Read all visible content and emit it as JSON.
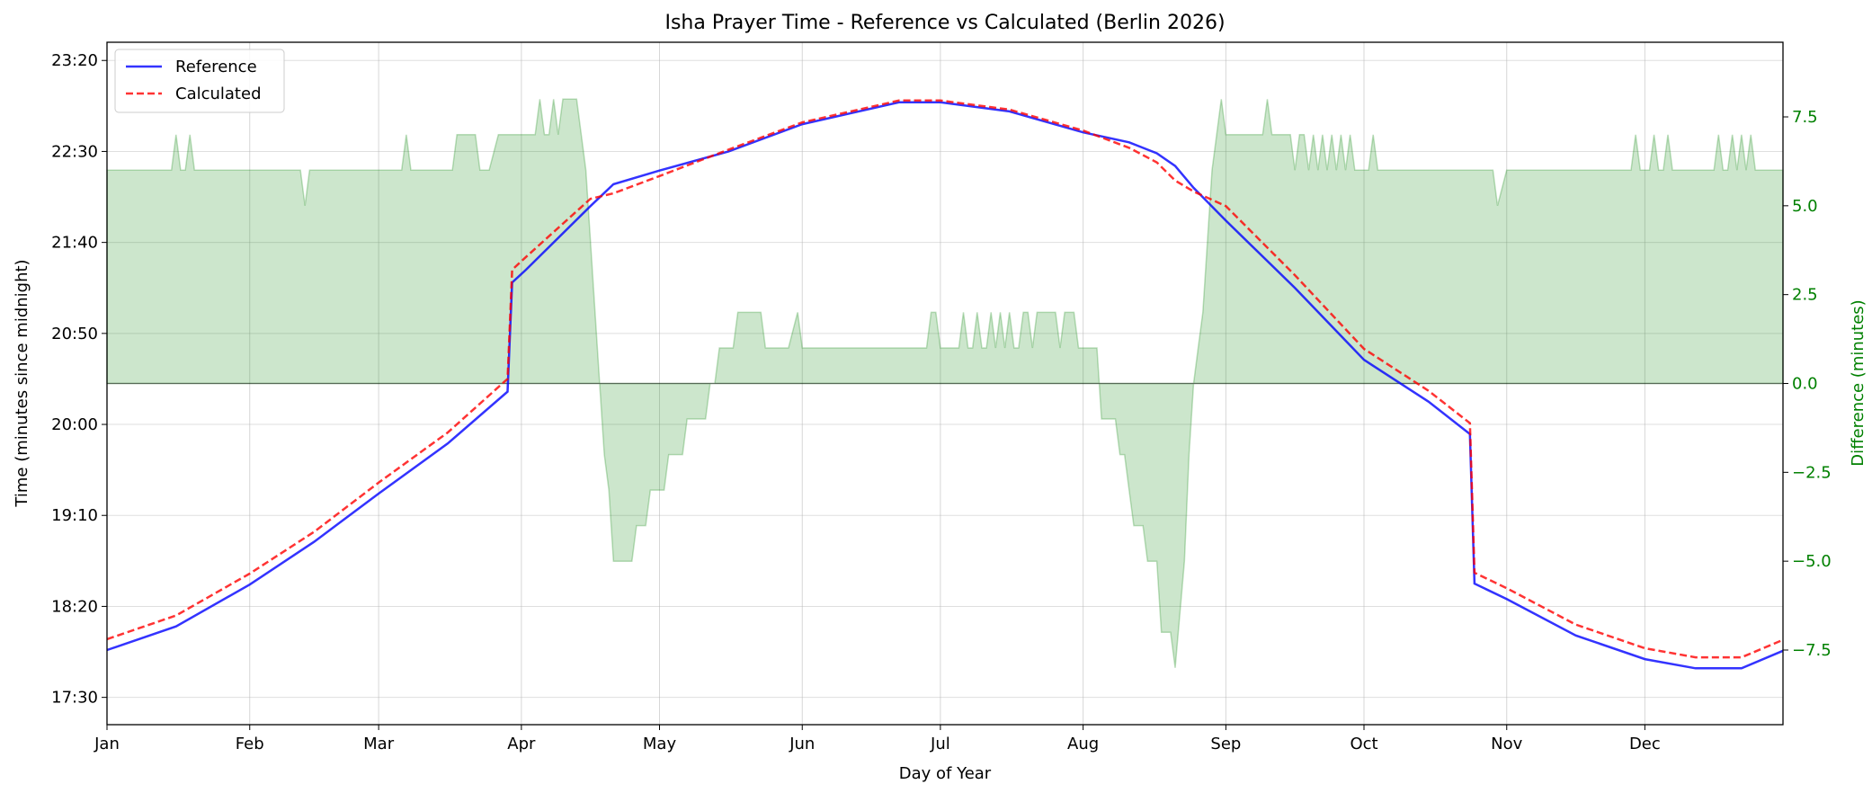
{
  "chart_data": {
    "type": "line",
    "title": "Isha Prayer Time - Reference vs Calculated (Berlin 2026)",
    "xlabel": "Day of Year",
    "ylabel": "Time (minutes since midnight)",
    "ylabel_right": "Difference (minutes)",
    "xlim": [
      0,
      364
    ],
    "ylim": [
      1035,
      1410
    ],
    "ylim_right": [
      -9.6,
      9.6
    ],
    "grid": true,
    "legend_placement": "top-left",
    "x_ticks": [
      {
        "day": 0,
        "label": "Jan"
      },
      {
        "day": 31,
        "label": "Feb"
      },
      {
        "day": 59,
        "label": "Mar"
      },
      {
        "day": 90,
        "label": "Apr"
      },
      {
        "day": 120,
        "label": "May"
      },
      {
        "day": 151,
        "label": "Jun"
      },
      {
        "day": 181,
        "label": "Jul"
      },
      {
        "day": 212,
        "label": "Aug"
      },
      {
        "day": 243,
        "label": "Sep"
      },
      {
        "day": 273,
        "label": "Oct"
      },
      {
        "day": 304,
        "label": "Nov"
      },
      {
        "day": 334,
        "label": "Dec"
      }
    ],
    "y_ticks": [
      {
        "value": 1050,
        "label": "17:30"
      },
      {
        "value": 1100,
        "label": "18:20"
      },
      {
        "value": 1150,
        "label": "19:10"
      },
      {
        "value": 1200,
        "label": "20:00"
      },
      {
        "value": 1250,
        "label": "20:50"
      },
      {
        "value": 1300,
        "label": "21:40"
      },
      {
        "value": 1350,
        "label": "22:30"
      },
      {
        "value": 1400,
        "label": "23:20"
      }
    ],
    "y_ticks_right": [
      {
        "value": -7.5,
        "label": "−7.5"
      },
      {
        "value": -5,
        "label": "−5.0"
      },
      {
        "value": -2.5,
        "label": "−2.5"
      },
      {
        "value": 0,
        "label": "0.0"
      },
      {
        "value": 2.5,
        "label": "2.5"
      },
      {
        "value": 5,
        "label": "5.0"
      },
      {
        "value": 7.5,
        "label": "7.5"
      }
    ],
    "series": [
      {
        "name": "Reference",
        "color": "#0000ff",
        "style": "solid",
        "points": [
          [
            0,
            1076
          ],
          [
            15,
            1089
          ],
          [
            31,
            1112
          ],
          [
            45,
            1135.5
          ],
          [
            59,
            1162
          ],
          [
            74,
            1189.5
          ],
          [
            87,
            1218
          ],
          [
            88,
            1278
          ],
          [
            91,
            1285
          ],
          [
            105,
            1320
          ],
          [
            110,
            1332
          ],
          [
            120,
            1339.5
          ],
          [
            135,
            1350
          ],
          [
            151,
            1365
          ],
          [
            172,
            1377
          ],
          [
            181,
            1377
          ],
          [
            196,
            1372
          ],
          [
            212,
            1360.5
          ],
          [
            222,
            1355
          ],
          [
            228,
            1349
          ],
          [
            232,
            1342
          ],
          [
            236,
            1330
          ],
          [
            243,
            1312
          ],
          [
            258,
            1275
          ],
          [
            273,
            1235.5
          ],
          [
            287,
            1212.5
          ],
          [
            296,
            1194.7
          ],
          [
            297,
            1112.5
          ],
          [
            304,
            1104
          ],
          [
            319,
            1084
          ],
          [
            334,
            1071
          ],
          [
            345,
            1066
          ],
          [
            355,
            1066
          ],
          [
            364,
            1075.6
          ]
        ]
      },
      {
        "name": "Calculated",
        "color": "#ff0000",
        "style": "dashed",
        "points": [
          [
            0,
            1082
          ],
          [
            15,
            1095
          ],
          [
            31,
            1118
          ],
          [
            45,
            1141
          ],
          [
            59,
            1168
          ],
          [
            74,
            1195.5
          ],
          [
            87,
            1225
          ],
          [
            88,
            1285
          ],
          [
            91,
            1292
          ],
          [
            105,
            1324
          ],
          [
            110,
            1327
          ],
          [
            120,
            1336.5
          ],
          [
            135,
            1351
          ],
          [
            151,
            1366
          ],
          [
            172,
            1378
          ],
          [
            181,
            1378
          ],
          [
            196,
            1373
          ],
          [
            212,
            1361.5
          ],
          [
            222,
            1352
          ],
          [
            228,
            1344
          ],
          [
            232,
            1334
          ],
          [
            236,
            1328
          ],
          [
            243,
            1320
          ],
          [
            258,
            1282
          ],
          [
            273,
            1241.5
          ],
          [
            287,
            1218.5
          ],
          [
            296,
            1200.7
          ],
          [
            297,
            1118.5
          ],
          [
            304,
            1110
          ],
          [
            319,
            1090
          ],
          [
            334,
            1077
          ],
          [
            345,
            1072
          ],
          [
            355,
            1072
          ],
          [
            364,
            1081.6
          ]
        ]
      },
      {
        "axis": "right",
        "color": "#008000",
        "style": "fill",
        "points": [
          [
            0,
            6
          ],
          [
            14,
            6
          ],
          [
            15,
            7
          ],
          [
            16,
            6
          ],
          [
            17,
            6
          ],
          [
            18,
            7
          ],
          [
            19,
            6
          ],
          [
            42,
            6
          ],
          [
            43,
            5
          ],
          [
            44,
            6
          ],
          [
            64,
            6
          ],
          [
            65,
            7
          ],
          [
            66,
            6
          ],
          [
            75,
            6
          ],
          [
            76,
            7
          ],
          [
            80,
            7
          ],
          [
            81,
            6
          ],
          [
            83,
            6
          ],
          [
            85,
            7
          ],
          [
            93,
            7
          ],
          [
            94,
            8
          ],
          [
            95,
            7
          ],
          [
            96,
            7
          ],
          [
            97,
            8
          ],
          [
            98,
            7
          ],
          [
            99,
            8
          ],
          [
            102,
            8
          ],
          [
            104,
            6
          ],
          [
            106,
            2
          ],
          [
            107,
            0
          ],
          [
            108,
            -2
          ],
          [
            109,
            -3
          ],
          [
            110,
            -5
          ],
          [
            114,
            -5
          ],
          [
            115,
            -4
          ],
          [
            117,
            -4
          ],
          [
            118,
            -3
          ],
          [
            121,
            -3
          ],
          [
            122,
            -2
          ],
          [
            125,
            -2
          ],
          [
            126,
            -1
          ],
          [
            130,
            -1
          ],
          [
            131,
            0
          ],
          [
            132,
            0
          ],
          [
            133,
            1
          ],
          [
            136,
            1
          ],
          [
            137,
            2
          ],
          [
            142,
            2
          ],
          [
            143,
            1
          ],
          [
            148,
            1
          ],
          [
            150,
            2
          ],
          [
            151,
            1
          ],
          [
            178,
            1
          ],
          [
            179,
            2
          ],
          [
            180,
            2
          ],
          [
            181,
            1
          ],
          [
            185,
            1
          ],
          [
            186,
            2
          ],
          [
            187,
            1
          ],
          [
            188,
            1
          ],
          [
            189,
            2
          ],
          [
            190,
            1
          ],
          [
            191,
            1
          ],
          [
            192,
            2
          ],
          [
            193,
            1
          ],
          [
            194,
            2
          ],
          [
            195,
            1
          ],
          [
            196,
            2
          ],
          [
            197,
            1
          ],
          [
            198,
            1
          ],
          [
            199,
            2
          ],
          [
            200,
            2
          ],
          [
            201,
            1
          ],
          [
            202,
            2
          ],
          [
            206,
            2
          ],
          [
            207,
            1
          ],
          [
            208,
            2
          ],
          [
            210,
            2
          ],
          [
            211,
            1
          ],
          [
            215,
            1
          ],
          [
            216,
            -1
          ],
          [
            219,
            -1
          ],
          [
            220,
            -2
          ],
          [
            221,
            -2
          ],
          [
            222,
            -3
          ],
          [
            223,
            -4
          ],
          [
            225,
            -4
          ],
          [
            226,
            -5
          ],
          [
            228,
            -5
          ],
          [
            229,
            -7
          ],
          [
            231,
            -7
          ],
          [
            232,
            -8
          ],
          [
            234,
            -5
          ],
          [
            235,
            -2
          ],
          [
            236,
            0
          ],
          [
            237,
            1
          ],
          [
            238,
            2
          ],
          [
            239,
            4
          ],
          [
            240,
            6
          ],
          [
            242,
            8
          ],
          [
            243,
            7
          ],
          [
            251,
            7
          ],
          [
            252,
            8
          ],
          [
            253,
            7
          ],
          [
            257,
            7
          ],
          [
            258,
            6
          ],
          [
            259,
            7
          ],
          [
            260,
            7
          ],
          [
            261,
            6
          ],
          [
            262,
            7
          ],
          [
            263,
            6
          ],
          [
            264,
            7
          ],
          [
            265,
            6
          ],
          [
            266,
            7
          ],
          [
            267,
            6
          ],
          [
            268,
            7
          ],
          [
            269,
            6
          ],
          [
            270,
            7
          ],
          [
            271,
            6
          ],
          [
            274,
            6
          ],
          [
            275,
            7
          ],
          [
            276,
            6
          ],
          [
            301,
            6
          ],
          [
            302,
            5
          ],
          [
            304,
            6
          ],
          [
            331,
            6
          ],
          [
            332,
            7
          ],
          [
            333,
            6
          ],
          [
            335,
            6
          ],
          [
            336,
            7
          ],
          [
            337,
            6
          ],
          [
            338,
            6
          ],
          [
            339,
            7
          ],
          [
            340,
            6
          ],
          [
            349,
            6
          ],
          [
            350,
            7
          ],
          [
            351,
            6
          ],
          [
            352,
            6
          ],
          [
            353,
            7
          ],
          [
            354,
            6
          ],
          [
            355,
            7
          ],
          [
            356,
            6
          ],
          [
            357,
            7
          ],
          [
            358,
            6
          ],
          [
            364,
            6
          ]
        ]
      }
    ]
  }
}
